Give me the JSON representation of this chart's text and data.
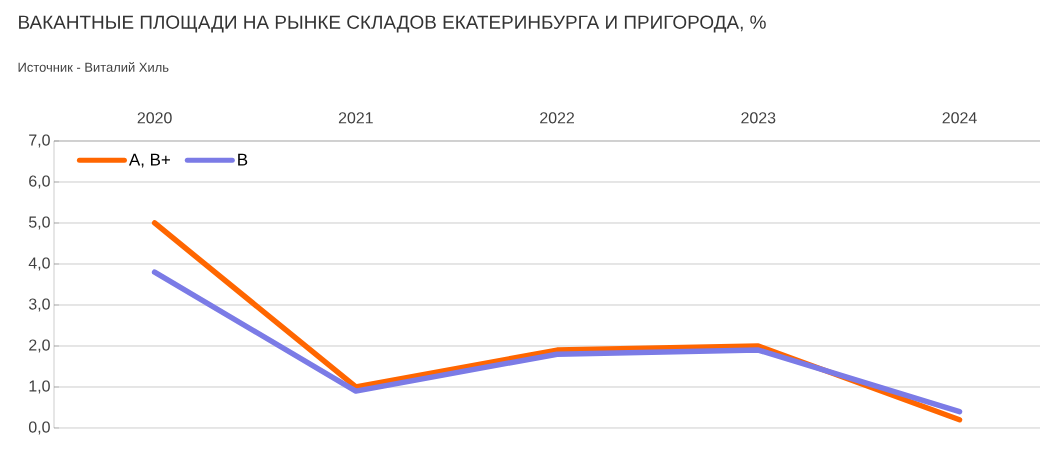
{
  "chart_data": {
    "type": "line",
    "title": "ВАКАНТНЫЕ ПЛОЩАДИ НА РЫНКЕ СКЛАДОВ ЕКАТЕРИНБУРГА И ПРИГОРОДА, %",
    "annotations": [
      "Источник - Виталий Хиль"
    ],
    "categories": [
      "2020",
      "2021",
      "2022",
      "2023",
      "2024"
    ],
    "series": [
      {
        "name": "A, B+",
        "color": "#ff6600",
        "values": [
          5.0,
          1.0,
          1.9,
          2.0,
          0.2
        ]
      },
      {
        "name": "B",
        "color": "#7b7be6",
        "values": [
          3.8,
          0.9,
          1.8,
          1.9,
          0.4
        ]
      }
    ],
    "ylim": [
      0,
      7
    ],
    "yticks": [
      {
        "value": 0,
        "label": "0,0"
      },
      {
        "value": 1,
        "label": "1,0"
      },
      {
        "value": 2,
        "label": "2,0"
      },
      {
        "value": 3,
        "label": "3,0"
      },
      {
        "value": 4,
        "label": "4,0"
      },
      {
        "value": 5,
        "label": "5,0"
      },
      {
        "value": 6,
        "label": "6,0"
      },
      {
        "value": 7,
        "label": "7,0"
      }
    ],
    "grid": "y",
    "legend": "top left"
  }
}
